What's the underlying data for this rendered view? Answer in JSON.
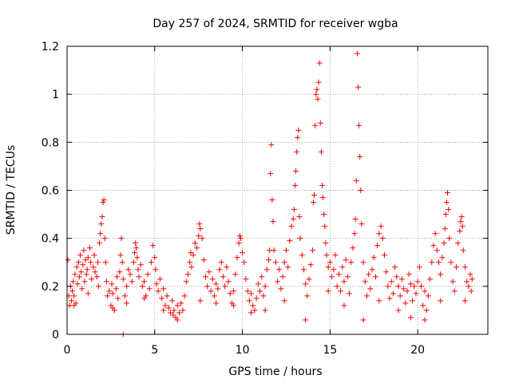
{
  "chart_data": {
    "type": "scatter",
    "title": "Day 257 of 2024, SRMTID for receiver wgba",
    "xlabel": "GPS time / hours",
    "ylabel": "SRMTID / TECUs",
    "xlim": [
      0,
      24
    ],
    "ylim": [
      0,
      1.2
    ],
    "x_ticks": [
      0,
      5,
      10,
      15,
      20
    ],
    "x_tick_labels": [
      "0",
      "5",
      "10",
      "15",
      "20"
    ],
    "y_ticks": [
      0,
      0.2,
      0.4,
      0.6,
      0.8,
      1.0,
      1.2
    ],
    "y_tick_labels": [
      "0",
      "0.2",
      "0.4",
      "0.6",
      "0.8",
      "1",
      "1.2"
    ],
    "grid": true,
    "marker": "+",
    "colors": {
      "series": "#ff0000",
      "axis": "#000000",
      "grid": "#a0a0a0"
    },
    "series": [
      {
        "name": "SRMTID",
        "points": [
          [
            0.05,
            0.31
          ],
          [
            0.1,
            0.16
          ],
          [
            0.15,
            0.12
          ],
          [
            0.2,
            0.2
          ],
          [
            0.25,
            0.14
          ],
          [
            0.3,
            0.18
          ],
          [
            0.35,
            0.22
          ],
          [
            0.4,
            0.16
          ],
          [
            0.45,
            0.25
          ],
          [
            0.5,
            0.13
          ],
          [
            0.55,
            0.28
          ],
          [
            0.6,
            0.21
          ],
          [
            0.65,
            0.3
          ],
          [
            0.7,
            0.24
          ],
          [
            0.75,
            0.33
          ],
          [
            0.8,
            0.26
          ],
          [
            0.85,
            0.19
          ],
          [
            0.9,
            0.29
          ],
          [
            0.95,
            0.35
          ],
          [
            1.0,
            0.22
          ],
          [
            1.05,
            0.31
          ],
          [
            1.1,
            0.25
          ],
          [
            1.15,
            0.27
          ],
          [
            1.2,
            0.32
          ],
          [
            1.3,
            0.36
          ],
          [
            1.35,
            0.3
          ],
          [
            1.4,
            0.23
          ],
          [
            1.5,
            0.28
          ],
          [
            1.55,
            0.33
          ],
          [
            1.6,
            0.26
          ],
          [
            1.7,
            0.24
          ],
          [
            1.75,
            0.3
          ],
          [
            1.8,
            0.2
          ],
          [
            1.85,
            0.38
          ],
          [
            1.9,
            0.42
          ],
          [
            1.95,
            0.46
          ],
          [
            2.0,
            0.49
          ],
          [
            2.05,
            0.55
          ],
          [
            2.1,
            0.56
          ],
          [
            2.15,
            0.4
          ],
          [
            2.2,
            0.3
          ],
          [
            2.25,
            0.22
          ],
          [
            2.3,
            0.16
          ],
          [
            2.4,
            0.18
          ],
          [
            2.5,
            0.12
          ],
          [
            2.55,
            0.21
          ],
          [
            2.6,
            0.17
          ],
          [
            2.7,
            0.1
          ],
          [
            2.8,
            0.19
          ],
          [
            2.85,
            0.24
          ],
          [
            2.9,
            0.15
          ],
          [
            3.0,
            0.26
          ],
          [
            3.05,
            0.33
          ],
          [
            3.1,
            0.4
          ],
          [
            3.15,
            0.3
          ],
          [
            3.2,
            0.23
          ],
          [
            3.3,
            0.16
          ],
          [
            3.4,
            0.2
          ],
          [
            3.5,
            0.27
          ],
          [
            3.6,
            0.25
          ],
          [
            3.7,
            0.22
          ],
          [
            3.8,
            0.3
          ],
          [
            3.85,
            0.34
          ],
          [
            3.9,
            0.38
          ],
          [
            3.95,
            0.36
          ],
          [
            4.0,
            0.32
          ],
          [
            4.05,
            0.27
          ],
          [
            4.1,
            0.24
          ],
          [
            4.2,
            0.29
          ],
          [
            4.3,
            0.2
          ],
          [
            4.4,
            0.22
          ],
          [
            4.5,
            0.16
          ],
          [
            4.6,
            0.25
          ],
          [
            4.7,
            0.19
          ],
          [
            4.8,
            0.3
          ],
          [
            4.9,
            0.37
          ],
          [
            5.0,
            0.32
          ],
          [
            5.05,
            0.27
          ],
          [
            5.1,
            0.21
          ],
          [
            5.2,
            0.18
          ],
          [
            5.3,
            0.23
          ],
          [
            5.4,
            0.15
          ],
          [
            5.5,
            0.19
          ],
          [
            5.6,
            0.12
          ],
          [
            5.7,
            0.16
          ],
          [
            5.8,
            0.11
          ],
          [
            5.9,
            0.09
          ],
          [
            6.0,
            0.14
          ],
          [
            6.05,
            0.08
          ],
          [
            6.1,
            0.1
          ],
          [
            6.2,
            0.07
          ],
          [
            6.3,
            0.12
          ],
          [
            6.4,
            0.09
          ],
          [
            6.5,
            0.13
          ],
          [
            6.6,
            0.1
          ],
          [
            6.7,
            0.16
          ],
          [
            6.8,
            0.22
          ],
          [
            6.9,
            0.25
          ],
          [
            7.0,
            0.3
          ],
          [
            7.05,
            0.34
          ],
          [
            7.1,
            0.28
          ],
          [
            7.2,
            0.33
          ],
          [
            7.3,
            0.38
          ],
          [
            7.4,
            0.36
          ],
          [
            7.5,
            0.41
          ],
          [
            7.55,
            0.46
          ],
          [
            7.6,
            0.44
          ],
          [
            7.7,
            0.4
          ],
          [
            7.8,
            0.31
          ],
          [
            7.9,
            0.24
          ],
          [
            8.0,
            0.2
          ],
          [
            8.1,
            0.26
          ],
          [
            8.2,
            0.18
          ],
          [
            8.3,
            0.23
          ],
          [
            8.4,
            0.16
          ],
          [
            8.5,
            0.21
          ],
          [
            8.6,
            0.19
          ],
          [
            8.7,
            0.27
          ],
          [
            8.8,
            0.3
          ],
          [
            8.9,
            0.24
          ],
          [
            9.0,
            0.2
          ],
          [
            9.1,
            0.28
          ],
          [
            9.2,
            0.22
          ],
          [
            9.3,
            0.17
          ],
          [
            9.4,
            0.13
          ],
          [
            9.5,
            0.18
          ],
          [
            9.6,
            0.25
          ],
          [
            9.7,
            0.32
          ],
          [
            9.8,
            0.38
          ],
          [
            9.85,
            0.41
          ],
          [
            9.9,
            0.4
          ],
          [
            10.0,
            0.34
          ],
          [
            10.1,
            0.3
          ],
          [
            10.2,
            0.23
          ],
          [
            10.3,
            0.18
          ],
          [
            10.4,
            0.14
          ],
          [
            10.5,
            0.17
          ],
          [
            10.6,
            0.12
          ],
          [
            10.7,
            0.1
          ],
          [
            10.8,
            0.15
          ],
          [
            10.9,
            0.21
          ],
          [
            11.0,
            0.18
          ],
          [
            11.1,
            0.24
          ],
          [
            11.2,
            0.16
          ],
          [
            11.3,
            0.2
          ],
          [
            11.4,
            0.27
          ],
          [
            11.5,
            0.31
          ],
          [
            11.55,
            0.35
          ],
          [
            11.6,
            0.67
          ],
          [
            11.65,
            0.79
          ],
          [
            11.7,
            0.56
          ],
          [
            11.75,
            0.47
          ],
          [
            11.8,
            0.35
          ],
          [
            11.9,
            0.3
          ],
          [
            12.0,
            0.22
          ],
          [
            12.1,
            0.27
          ],
          [
            12.2,
            0.19
          ],
          [
            12.3,
            0.24
          ],
          [
            12.4,
            0.3
          ],
          [
            12.5,
            0.35
          ],
          [
            12.6,
            0.28
          ],
          [
            12.7,
            0.39
          ],
          [
            12.8,
            0.45
          ],
          [
            12.9,
            0.48
          ],
          [
            12.95,
            0.52
          ],
          [
            13.0,
            0.62
          ],
          [
            13.05,
            0.68
          ],
          [
            13.1,
            0.76
          ],
          [
            13.15,
            0.82
          ],
          [
            13.2,
            0.85
          ],
          [
            13.25,
            0.49
          ],
          [
            13.3,
            0.4
          ],
          [
            13.4,
            0.33
          ],
          [
            13.5,
            0.27
          ],
          [
            13.6,
            0.21
          ],
          [
            13.7,
            0.16
          ],
          [
            13.8,
            0.23
          ],
          [
            13.9,
            0.29
          ],
          [
            14.0,
            0.35
          ],
          [
            14.05,
            0.55
          ],
          [
            14.1,
            0.58
          ],
          [
            14.15,
            0.87
          ],
          [
            14.2,
            1.0
          ],
          [
            14.25,
            1.02
          ],
          [
            14.3,
            0.98
          ],
          [
            14.35,
            1.05
          ],
          [
            14.4,
            1.13
          ],
          [
            14.45,
            0.88
          ],
          [
            14.5,
            0.76
          ],
          [
            14.55,
            0.62
          ],
          [
            14.6,
            0.57
          ],
          [
            14.65,
            0.5
          ],
          [
            14.7,
            0.45
          ],
          [
            14.75,
            0.38
          ],
          [
            14.8,
            0.33
          ],
          [
            14.9,
            0.28
          ],
          [
            15.0,
            0.3
          ],
          [
            15.1,
            0.24
          ],
          [
            15.2,
            0.27
          ],
          [
            15.3,
            0.33
          ],
          [
            15.4,
            0.2
          ],
          [
            15.5,
            0.25
          ],
          [
            15.6,
            0.18
          ],
          [
            15.7,
            0.28
          ],
          [
            15.8,
            0.22
          ],
          [
            15.9,
            0.31
          ],
          [
            16.0,
            0.24
          ],
          [
            16.1,
            0.17
          ],
          [
            16.2,
            0.3
          ],
          [
            16.3,
            0.36
          ],
          [
            16.4,
            0.42
          ],
          [
            16.45,
            0.48
          ],
          [
            16.5,
            0.64
          ],
          [
            16.55,
            1.17
          ],
          [
            16.6,
            1.03
          ],
          [
            16.65,
            0.87
          ],
          [
            16.7,
            0.74
          ],
          [
            16.75,
            0.6
          ],
          [
            16.8,
            0.46
          ],
          [
            16.9,
            0.3
          ],
          [
            17.0,
            0.22
          ],
          [
            17.1,
            0.16
          ],
          [
            17.2,
            0.25
          ],
          [
            17.3,
            0.19
          ],
          [
            17.4,
            0.27
          ],
          [
            17.5,
            0.32
          ],
          [
            17.6,
            0.24
          ],
          [
            17.7,
            0.37
          ],
          [
            17.8,
            0.42
          ],
          [
            17.9,
            0.45
          ],
          [
            18.0,
            0.4
          ],
          [
            18.1,
            0.33
          ],
          [
            18.2,
            0.26
          ],
          [
            18.3,
            0.2
          ],
          [
            18.4,
            0.15
          ],
          [
            18.5,
            0.22
          ],
          [
            18.6,
            0.17
          ],
          [
            18.7,
            0.28
          ],
          [
            18.8,
            0.24
          ],
          [
            18.9,
            0.2
          ],
          [
            19.0,
            0.16
          ],
          [
            19.1,
            0.23
          ],
          [
            19.2,
            0.19
          ],
          [
            19.3,
            0.13
          ],
          [
            19.4,
            0.18
          ],
          [
            19.5,
            0.25
          ],
          [
            19.6,
            0.21
          ],
          [
            19.7,
            0.14
          ],
          [
            19.8,
            0.2
          ],
          [
            19.9,
            0.17
          ],
          [
            20.0,
            0.22
          ],
          [
            20.1,
            0.28
          ],
          [
            20.2,
            0.2
          ],
          [
            20.3,
            0.12
          ],
          [
            20.4,
            0.18
          ],
          [
            20.5,
            0.1
          ],
          [
            20.6,
            0.16
          ],
          [
            20.7,
            0.23
          ],
          [
            20.8,
            0.3
          ],
          [
            20.9,
            0.37
          ],
          [
            21.0,
            0.42
          ],
          [
            21.1,
            0.35
          ],
          [
            21.2,
            0.3
          ],
          [
            21.3,
            0.25
          ],
          [
            21.4,
            0.32
          ],
          [
            21.5,
            0.38
          ],
          [
            21.55,
            0.44
          ],
          [
            21.6,
            0.5
          ],
          [
            21.65,
            0.55
          ],
          [
            21.7,
            0.59
          ],
          [
            21.75,
            0.52
          ],
          [
            21.8,
            0.4
          ],
          [
            21.9,
            0.3
          ],
          [
            22.0,
            0.22
          ],
          [
            22.1,
            0.18
          ],
          [
            22.2,
            0.28
          ],
          [
            22.3,
            0.38
          ],
          [
            22.4,
            0.43
          ],
          [
            22.45,
            0.47
          ],
          [
            22.5,
            0.49
          ],
          [
            22.55,
            0.45
          ],
          [
            22.6,
            0.35
          ],
          [
            22.7,
            0.28
          ],
          [
            22.8,
            0.22
          ],
          [
            22.9,
            0.2
          ],
          [
            23.0,
            0.25
          ],
          [
            23.05,
            0.18
          ],
          [
            23.1,
            0.23
          ],
          [
            0.4,
            0.12
          ],
          [
            1.2,
            0.17
          ],
          [
            2.6,
            0.11
          ],
          [
            3.4,
            0.13
          ],
          [
            4.4,
            0.15
          ],
          [
            5.5,
            0.1
          ],
          [
            6.3,
            0.06
          ],
          [
            7.6,
            0.14
          ],
          [
            8.5,
            0.13
          ],
          [
            9.5,
            0.12
          ],
          [
            10.5,
            0.09
          ],
          [
            11.3,
            0.1
          ],
          [
            12.4,
            0.14
          ],
          [
            13.6,
            0.06
          ],
          [
            14.9,
            0.18
          ],
          [
            15.8,
            0.12
          ],
          [
            16.9,
            0.06
          ],
          [
            17.8,
            0.14
          ],
          [
            18.9,
            0.1
          ],
          [
            19.6,
            0.07
          ],
          [
            20.4,
            0.06
          ],
          [
            21.3,
            0.14
          ],
          [
            22.7,
            0.14
          ],
          [
            3.2,
            0.0
          ]
        ]
      }
    ]
  }
}
